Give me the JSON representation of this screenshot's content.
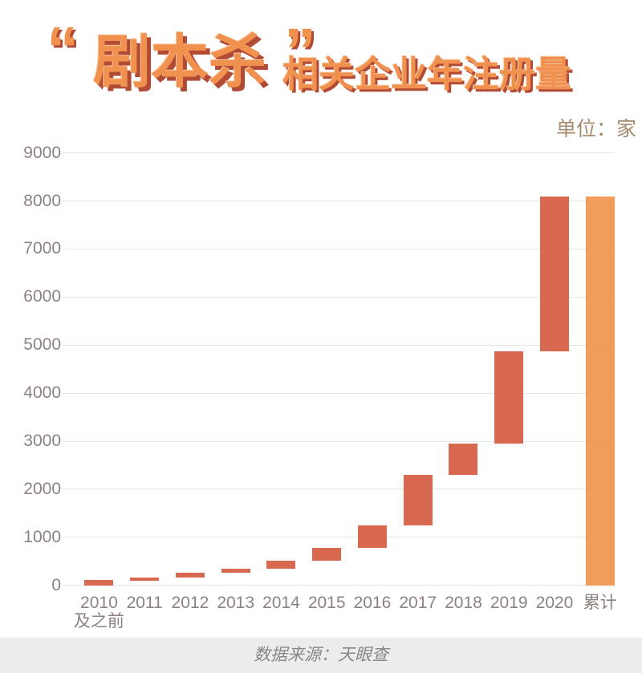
{
  "title": {
    "open_quote": "“",
    "main": "剧本杀",
    "close_quote": "”",
    "subtitle": "相关企业年注册量",
    "color": "#f0914f",
    "shadow_color": "#b24b35"
  },
  "unit_label": "单位：家",
  "footer": {
    "source_text": "数据来源：天眼查",
    "bg": "#ececec",
    "color": "#8a8684"
  },
  "chart_data": {
    "type": "bar",
    "subtype": "waterfall",
    "title": "“剧本杀”相关企业年注册量",
    "unit": "家",
    "xlabel": "",
    "ylabel": "",
    "ylim": [
      0,
      9000
    ],
    "ytick_step": 1000,
    "yticks": [
      0,
      1000,
      2000,
      3000,
      4000,
      5000,
      6000,
      7000,
      8000,
      9000
    ],
    "grid": true,
    "legend": null,
    "categories": [
      "2010及之前",
      "2011",
      "2012",
      "2013",
      "2014",
      "2015",
      "2016",
      "2017",
      "2018",
      "2019",
      "2020",
      "累计"
    ],
    "bars": [
      {
        "label": "2010及之前",
        "label_lines": [
          "2010",
          "及之前"
        ],
        "role": "increment",
        "start": 0,
        "end": 110,
        "value": 110
      },
      {
        "label": "2011",
        "label_lines": [
          "2011"
        ],
        "role": "increment",
        "start": 110,
        "end": 170,
        "value": 60
      },
      {
        "label": "2012",
        "label_lines": [
          "2012"
        ],
        "role": "increment",
        "start": 170,
        "end": 260,
        "value": 90
      },
      {
        "label": "2013",
        "label_lines": [
          "2013"
        ],
        "role": "increment",
        "start": 260,
        "end": 350,
        "value": 90
      },
      {
        "label": "2014",
        "label_lines": [
          "2014"
        ],
        "role": "increment",
        "start": 350,
        "end": 520,
        "value": 170
      },
      {
        "label": "2015",
        "label_lines": [
          "2015"
        ],
        "role": "increment",
        "start": 520,
        "end": 780,
        "value": 260
      },
      {
        "label": "2016",
        "label_lines": [
          "2016"
        ],
        "role": "increment",
        "start": 780,
        "end": 1250,
        "value": 470
      },
      {
        "label": "2017",
        "label_lines": [
          "2017"
        ],
        "role": "increment",
        "start": 1250,
        "end": 2300,
        "value": 1050
      },
      {
        "label": "2018",
        "label_lines": [
          "2018"
        ],
        "role": "increment",
        "start": 2300,
        "end": 2950,
        "value": 650
      },
      {
        "label": "2019",
        "label_lines": [
          "2019"
        ],
        "role": "increment",
        "start": 2950,
        "end": 4870,
        "value": 1920
      },
      {
        "label": "2020",
        "label_lines": [
          "2020"
        ],
        "role": "increment",
        "start": 4870,
        "end": 8100,
        "value": 3230
      },
      {
        "label": "累计",
        "label_lines": [
          "累计"
        ],
        "role": "total",
        "start": 0,
        "end": 8100,
        "value": 8100
      }
    ],
    "colors": {
      "increment": "#d8684f",
      "total": "#f59e5c",
      "total_rgba": "rgba(240,139,62,0.85)",
      "grid": "#e7e5e3",
      "axis_label": "#8d8280",
      "unit_label": "#a58a6e"
    }
  }
}
